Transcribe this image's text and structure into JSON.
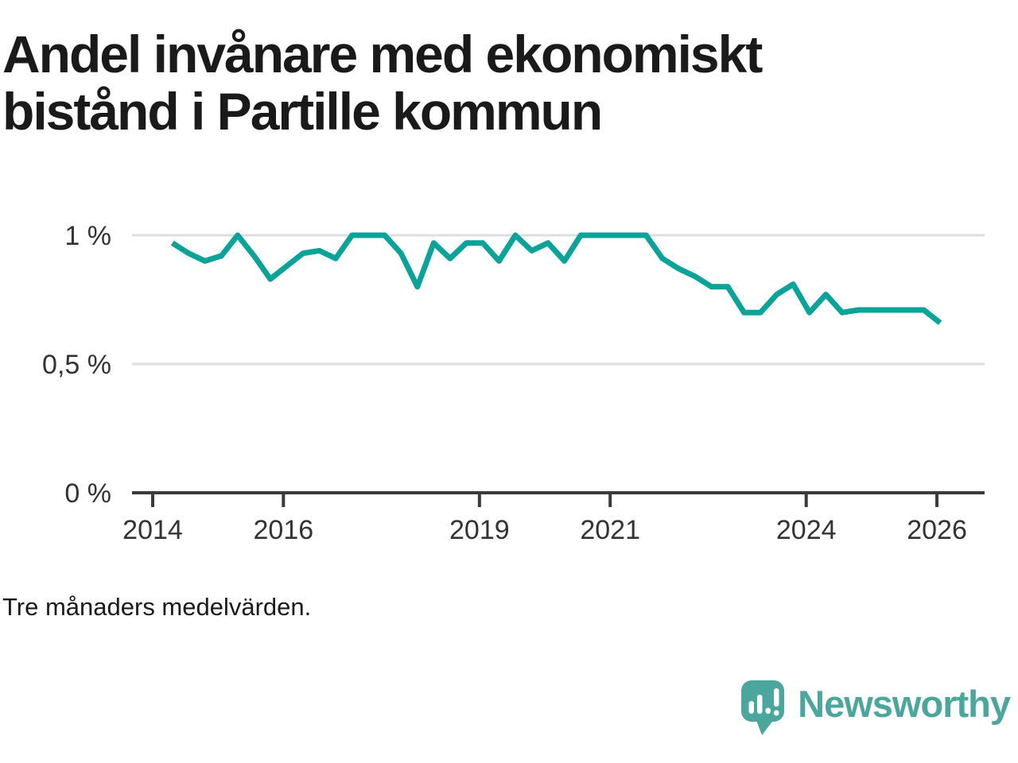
{
  "header": {
    "title_line1": "Andel invånare med ekonomiskt",
    "title_line2": "bistånd i Partille kommun"
  },
  "footer": {
    "note": "Tre månaders medelvärden."
  },
  "logo": {
    "text": "Newsworthy",
    "icon": "newsworthy-speech-bubble-bar-chart-icon",
    "color": "#4BA69E"
  },
  "colors": {
    "line": "#0AA39A",
    "gridline": "#DEDEDE",
    "axis": "#3A3A3A",
    "text": "#333333",
    "title_text": "#1A1A1A"
  },
  "chart_data": {
    "type": "line",
    "title": "Andel invånare med ekonomiskt bistånd i Partille kommun",
    "note": "Tre månaders medelvärden.",
    "xlabel": "",
    "ylabel": "",
    "legend": "none",
    "grid": "horizontal",
    "x_ticks": [
      2014,
      2016,
      2019,
      2021,
      2024,
      2026
    ],
    "y_ticks": [
      {
        "value": 1,
        "label": "1 %"
      },
      {
        "value": 0.5,
        "label": "0,5 %"
      },
      {
        "value": 0,
        "label": "0 %"
      }
    ],
    "xlim": [
      2013.67,
      2026.72
    ],
    "ylim": [
      0,
      1.08
    ],
    "unit": "%",
    "series": [
      {
        "name": "Andel invånare med ekonomiskt bistånd",
        "x_start": 2014.3,
        "x_step": 0.25,
        "values": [
          0.97,
          0.93,
          0.9,
          0.92,
          1.0,
          0.92,
          0.83,
          0.88,
          0.93,
          0.94,
          0.91,
          1.0,
          1.0,
          1.0,
          0.93,
          0.8,
          0.97,
          0.91,
          0.97,
          0.97,
          0.9,
          1.0,
          0.94,
          0.97,
          0.9,
          1.0,
          1.0,
          1.0,
          1.0,
          1.0,
          0.91,
          0.87,
          0.84,
          0.8,
          0.8,
          0.7,
          0.7,
          0.77,
          0.81,
          0.7,
          0.77,
          0.7,
          0.71,
          0.71,
          0.71,
          0.71,
          0.71,
          0.66
        ]
      }
    ]
  }
}
